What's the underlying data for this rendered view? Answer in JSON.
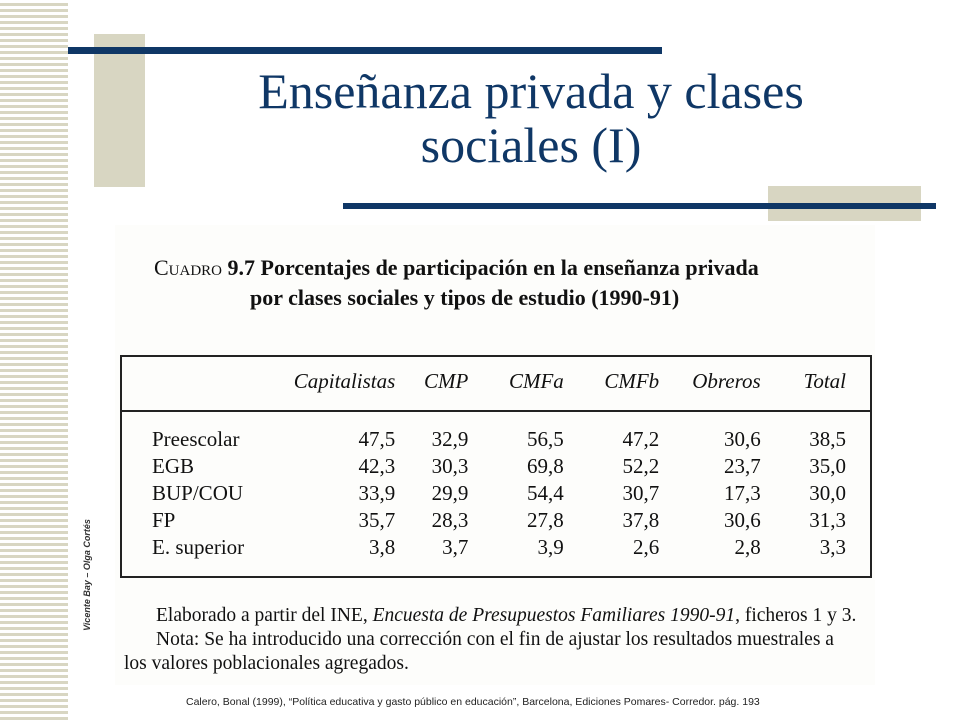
{
  "slide": {
    "title_line1": "Enseñanza privada y clases",
    "title_line2": "sociales (I)",
    "side_credit": "Vicente Bay – Olga Cortés",
    "footnote": "Calero, Bonal (1999), “Política educativa y gasto público en educación”, Barcelona, Ediciones Pomares- Corredor. pág. 193",
    "colors": {
      "accent": "#0f3766",
      "deco": "#d8d6c2"
    }
  },
  "table": {
    "caption_label": "Cuadro",
    "caption_number": "9.7",
    "caption_line1": "Porcentajes de participación en la enseñanza privada",
    "caption_line2": "por clases sociales y tipos de estudio (1990-91)",
    "columns": [
      "Capitalistas",
      "CMP",
      "CMFa",
      "CMFb",
      "Obreros",
      "Total"
    ],
    "rows": [
      {
        "label": "Preescolar",
        "values": [
          "47,5",
          "32,9",
          "56,5",
          "47,2",
          "30,6",
          "38,5"
        ]
      },
      {
        "label": "EGB",
        "values": [
          "42,3",
          "30,3",
          "69,8",
          "52,2",
          "23,7",
          "35,0"
        ]
      },
      {
        "label": "BUP/COU",
        "values": [
          "33,9",
          "29,9",
          "54,4",
          "30,7",
          "17,3",
          "30,0"
        ]
      },
      {
        "label": "FP",
        "values": [
          "35,7",
          "28,3",
          "27,8",
          "37,8",
          "30,6",
          "31,3"
        ]
      },
      {
        "label": "E. superior",
        "values": [
          "3,8",
          "3,7",
          "3,9",
          "2,6",
          "2,8",
          "3,3"
        ]
      }
    ],
    "source_prefix": "Elaborado a partir del INE,",
    "source_title": "Encuesta de Presupuestos Familiares 1990-91",
    "source_suffix": ", ficheros 1 y 3.",
    "note_line1": "Nota: Se ha introducido una corrección con el fin de ajustar los resultados muestrales a",
    "note_line2": "los valores poblacionales agregados."
  }
}
